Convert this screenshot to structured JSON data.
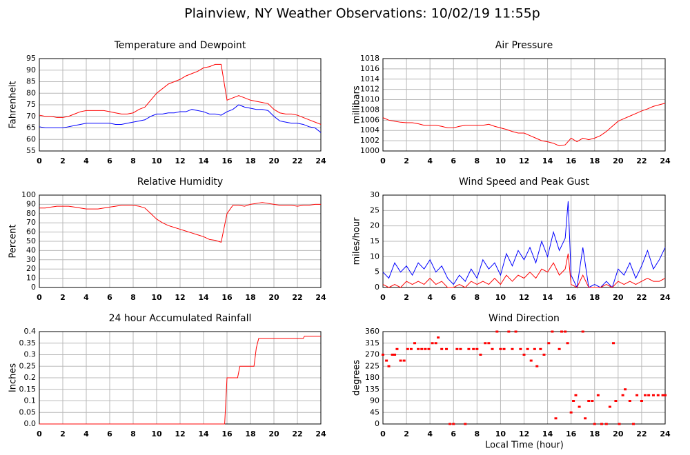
{
  "title": "Plainview, NY Weather Observations: 10/02/19 11:55p",
  "xlabel": "Local Time (hour)",
  "chart_data": [
    {
      "type": "line",
      "title": "Temperature and Dewpoint",
      "ylabel": "Fahrenheit",
      "x": [
        0,
        0.5,
        1,
        1.5,
        2,
        2.5,
        3,
        3.5,
        4,
        4.5,
        5,
        5.5,
        6,
        6.5,
        7,
        7.5,
        8,
        8.5,
        9,
        9.5,
        10,
        10.5,
        11,
        11.5,
        12,
        12.5,
        13,
        13.5,
        14,
        14.5,
        15,
        15.5,
        16,
        16.5,
        17,
        17.5,
        18,
        18.5,
        19,
        19.5,
        20,
        20.5,
        21,
        21.5,
        22,
        22.5,
        23,
        23.5,
        24
      ],
      "series": [
        {
          "name": "Temperature",
          "color": "#ff0000",
          "values": [
            70.5,
            70,
            70,
            69.5,
            69.5,
            70,
            71,
            72,
            72.5,
            72.5,
            72.5,
            72.5,
            72,
            71.5,
            71,
            71,
            71.5,
            73,
            74,
            77,
            80,
            82,
            84,
            85,
            86,
            87.5,
            88.5,
            89.5,
            91,
            91.5,
            92.5,
            92.5,
            77,
            78,
            79,
            78,
            77,
            76.5,
            76,
            75.5,
            73,
            71.5,
            71,
            71,
            70.5,
            69.5,
            68.5,
            67.5,
            66.5
          ]
        },
        {
          "name": "Dewpoint",
          "color": "#0000ff",
          "values": [
            65.5,
            65,
            65,
            65,
            65,
            65.5,
            66,
            66.5,
            67,
            67,
            67,
            67,
            67,
            66.5,
            66.5,
            67,
            67.5,
            68,
            68.5,
            70,
            71,
            71,
            71.5,
            71.5,
            72,
            72,
            73,
            72.5,
            72,
            71,
            71,
            70.5,
            72,
            73,
            75,
            74,
            73.5,
            73,
            73,
            72.5,
            70,
            68,
            67.5,
            67,
            67,
            66.5,
            65.5,
            65,
            63
          ]
        }
      ],
      "xlim": [
        0,
        24
      ],
      "xticks": [
        0,
        2,
        4,
        6,
        8,
        10,
        12,
        14,
        16,
        18,
        20,
        22,
        24
      ],
      "ylim": [
        55,
        95
      ],
      "yticks": [
        55,
        60,
        65,
        70,
        75,
        80,
        85,
        90,
        95
      ],
      "grid": true
    },
    {
      "type": "line",
      "title": "Air Pressure",
      "ylabel": "millibars",
      "x": [
        0,
        0.5,
        1,
        1.5,
        2,
        2.5,
        3,
        3.5,
        4,
        4.5,
        5,
        5.5,
        6,
        6.5,
        7,
        7.5,
        8,
        8.5,
        9,
        9.5,
        10,
        10.5,
        11,
        11.5,
        12,
        12.5,
        13,
        13.5,
        14,
        14.5,
        15,
        15.5,
        16,
        16.5,
        17,
        17.5,
        18,
        18.5,
        19,
        19.5,
        20,
        20.5,
        21,
        21.5,
        22,
        22.5,
        23,
        23.5,
        24
      ],
      "series": [
        {
          "name": "Pressure",
          "color": "#ff0000",
          "values": [
            1006.5,
            1006,
            1005.8,
            1005.6,
            1005.5,
            1005.5,
            1005.3,
            1005,
            1005,
            1005,
            1004.8,
            1004.5,
            1004.5,
            1004.8,
            1005,
            1005,
            1005,
            1005,
            1005.2,
            1004.8,
            1004.5,
            1004.2,
            1003.8,
            1003.5,
            1003.5,
            1003,
            1002.5,
            1002,
            1001.8,
            1001.5,
            1001,
            1001.2,
            1002.5,
            1001.8,
            1002.5,
            1002.2,
            1002.5,
            1003,
            1003.8,
            1004.8,
            1005.8,
            1006.3,
            1006.8,
            1007.3,
            1007.8,
            1008.2,
            1008.7,
            1009,
            1009.3
          ]
        }
      ],
      "xlim": [
        0,
        24
      ],
      "xticks": [
        0,
        2,
        4,
        6,
        8,
        10,
        12,
        14,
        16,
        18,
        20,
        22,
        24
      ],
      "ylim": [
        1000,
        1018
      ],
      "yticks": [
        1000,
        1002,
        1004,
        1006,
        1008,
        1010,
        1012,
        1014,
        1016,
        1018
      ],
      "grid": true
    },
    {
      "type": "line",
      "title": "Relative Humidity",
      "ylabel": "Percent",
      "x": [
        0,
        0.5,
        1,
        1.5,
        2,
        2.5,
        3,
        3.5,
        4,
        4.5,
        5,
        5.5,
        6,
        6.5,
        7,
        7.5,
        8,
        8.5,
        9,
        9.5,
        10,
        10.5,
        11,
        11.5,
        12,
        12.5,
        13,
        13.5,
        14,
        14.5,
        15,
        15.5,
        16,
        16.5,
        17,
        17.5,
        18,
        18.5,
        19,
        19.5,
        20,
        20.5,
        21,
        21.5,
        22,
        22.5,
        23,
        23.5,
        24
      ],
      "series": [
        {
          "name": "Humidity",
          "color": "#ff0000",
          "values": [
            86,
            86,
            87,
            88,
            88,
            88,
            87,
            86,
            85,
            85,
            85,
            86,
            87,
            88,
            89,
            89,
            89,
            88,
            86,
            80,
            74,
            70,
            67,
            65,
            63,
            61,
            59,
            57,
            55,
            52,
            51,
            49,
            80,
            89,
            89,
            88,
            90,
            91,
            92,
            91,
            90,
            89,
            89,
            89,
            88,
            89,
            89,
            90,
            90
          ]
        }
      ],
      "xlim": [
        0,
        24
      ],
      "xticks": [
        0,
        2,
        4,
        6,
        8,
        10,
        12,
        14,
        16,
        18,
        20,
        22,
        24
      ],
      "ylim": [
        0,
        100
      ],
      "yticks": [
        0,
        10,
        20,
        30,
        40,
        50,
        60,
        70,
        80,
        90,
        100
      ],
      "grid": true
    },
    {
      "type": "line",
      "title": "Wind Speed and Peak Gust",
      "ylabel": "miles/hour",
      "x": [
        0,
        0.5,
        1,
        1.5,
        2,
        2.5,
        3,
        3.5,
        4,
        4.5,
        5,
        5.5,
        6,
        6.5,
        7,
        7.5,
        8,
        8.5,
        9,
        9.5,
        10,
        10.5,
        11,
        11.5,
        12,
        12.5,
        13,
        13.5,
        14,
        14.5,
        15,
        15.5,
        15.75,
        16,
        16.5,
        17,
        17.5,
        18,
        18.5,
        19,
        19.5,
        20,
        20.5,
        21,
        21.5,
        22,
        22.5,
        23,
        23.5,
        24
      ],
      "series": [
        {
          "name": "Wind Speed",
          "color": "#0000ff",
          "values": [
            5,
            3,
            8,
            5,
            7,
            4,
            8,
            6,
            9,
            5,
            7,
            3,
            1,
            4,
            2,
            6,
            3,
            9,
            6,
            8,
            4,
            11,
            7,
            12,
            9,
            13,
            8,
            15,
            10,
            18,
            12,
            16,
            28,
            4,
            0,
            13,
            0,
            1,
            0,
            2,
            0,
            6,
            4,
            8,
            3,
            7,
            12,
            6,
            9,
            13
          ]
        },
        {
          "name": "Peak Gust",
          "color": "#ff0000",
          "values": [
            1,
            0,
            1,
            0,
            2,
            1,
            2,
            1,
            3,
            1,
            2,
            0,
            0,
            1,
            0,
            2,
            1,
            2,
            1,
            3,
            1,
            4,
            2,
            4,
            3,
            5,
            3,
            6,
            5,
            8,
            4,
            6,
            11,
            1,
            0,
            4,
            0,
            0,
            0,
            1,
            0,
            2,
            1,
            2,
            1,
            2,
            3,
            2,
            2,
            3
          ]
        }
      ],
      "xlim": [
        0,
        24
      ],
      "xticks": [
        0,
        2,
        4,
        6,
        8,
        10,
        12,
        14,
        16,
        18,
        20,
        22,
        24
      ],
      "ylim": [
        0,
        30
      ],
      "yticks": [
        0,
        5,
        10,
        15,
        20,
        25,
        30
      ],
      "grid": true
    },
    {
      "type": "line",
      "title": "24 hour Accumulated Rainfall",
      "ylabel": "Inches",
      "x": [
        0,
        15.8,
        16,
        16.9,
        17.1,
        18.3,
        18.5,
        18.7,
        22.5,
        22.6,
        24
      ],
      "series": [
        {
          "name": "Rainfall",
          "color": "#ff0000",
          "values": [
            0,
            0,
            0.2,
            0.2,
            0.25,
            0.25,
            0.33,
            0.37,
            0.37,
            0.38,
            0.38
          ]
        }
      ],
      "xlim": [
        0,
        24
      ],
      "xticks": [
        0,
        2,
        4,
        6,
        8,
        10,
        12,
        14,
        16,
        18,
        20,
        22,
        24
      ],
      "ylim": [
        0,
        0.4
      ],
      "yticks": [
        {
          "value": 0,
          "label": "0.0"
        },
        0.05,
        0.1,
        0.15,
        0.2,
        0.25,
        0.3,
        0.35,
        0.4
      ],
      "grid": true
    },
    {
      "type": "scatter",
      "title": "Wind Direction",
      "ylabel": "degrees",
      "x": [
        0,
        0.3,
        0.5,
        0.8,
        1,
        1.2,
        1.5,
        1.8,
        2.1,
        2.4,
        2.7,
        3,
        3.3,
        3.6,
        3.9,
        4.2,
        4.5,
        4.7,
        5,
        5.4,
        5.7,
        6,
        6.3,
        6.6,
        7,
        7.3,
        7.7,
        8,
        8.3,
        8.7,
        9,
        9.3,
        9.7,
        10,
        10.3,
        10.7,
        11,
        11.3,
        11.7,
        12,
        12.3,
        12.6,
        12.9,
        13.1,
        13.4,
        13.7,
        14.1,
        14.4,
        14.7,
        15,
        15.2,
        15.5,
        15.7,
        16,
        16.2,
        16.4,
        16.7,
        17,
        17.2,
        17.5,
        17.8,
        18,
        18.3,
        18.6,
        19,
        19.3,
        19.6,
        19.8,
        20.1,
        20.4,
        20.6,
        21,
        21.3,
        21.6,
        22,
        22.3,
        22.6,
        23,
        23.4,
        23.8,
        24
      ],
      "series": [
        {
          "name": "Direction",
          "color": "#ff0000",
          "values": [
            270,
            247,
            225,
            270,
            270,
            292,
            247,
            247,
            292,
            292,
            315,
            292,
            292,
            292,
            292,
            315,
            315,
            337,
            292,
            292,
            0,
            0,
            292,
            292,
            0,
            292,
            292,
            292,
            270,
            315,
            315,
            292,
            360,
            292,
            292,
            360,
            292,
            360,
            292,
            270,
            292,
            247,
            292,
            225,
            292,
            270,
            315,
            360,
            22,
            292,
            360,
            360,
            315,
            45,
            90,
            112,
            67,
            360,
            22,
            90,
            90,
            0,
            112,
            0,
            0,
            67,
            315,
            90,
            0,
            112,
            135,
            90,
            0,
            112,
            90,
            112,
            112,
            112,
            112,
            112,
            112
          ]
        }
      ],
      "xlim": [
        0,
        24
      ],
      "xticks": [
        0,
        2,
        4,
        6,
        8,
        10,
        12,
        14,
        16,
        18,
        20,
        22,
        24
      ],
      "ylim": [
        0,
        360
      ],
      "yticks": [
        0,
        45,
        90,
        135,
        180,
        225,
        270,
        315,
        360
      ],
      "grid": true
    }
  ]
}
